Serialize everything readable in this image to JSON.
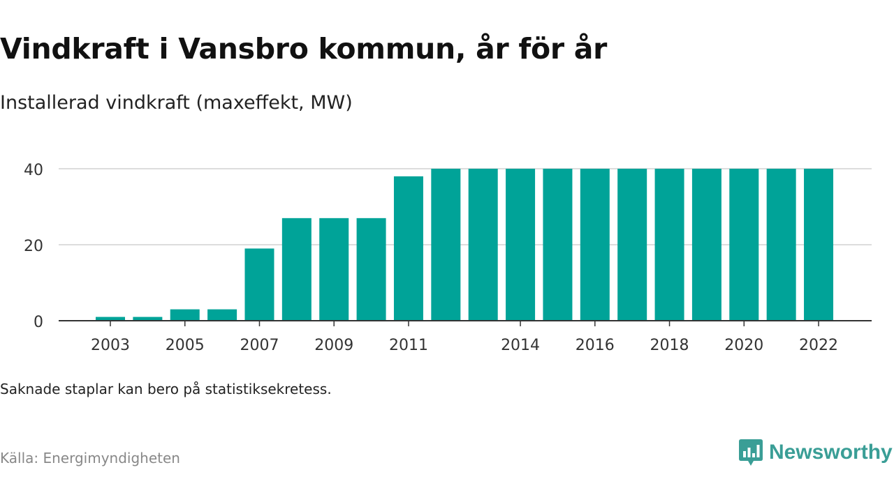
{
  "header": {
    "title": "Vindkraft i Vansbro kommun, år för år",
    "subtitle": "Installerad vindkraft (maxeffekt, MW)"
  },
  "footer": {
    "note": "Saknade staplar kan bero på statistiksekretess.",
    "source": "Källa: Energimyndigheten",
    "brand_name": "Newsworthy",
    "brand_icon": "newsworthy-logo-icon"
  },
  "colors": {
    "bar": "#00a398",
    "grid": "#dddddd",
    "axis": "#333333",
    "brand": "#3a9e96"
  },
  "chart_data": {
    "type": "bar",
    "title": "Vindkraft i Vansbro kommun, år för år",
    "subtitle": "Installerad vindkraft (maxeffekt, MW)",
    "categories": [
      "2003",
      "2004",
      "2005",
      "2006",
      "2007",
      "2008",
      "2009",
      "2010",
      "2011",
      "2012",
      "2013",
      "2014",
      "2015",
      "2016",
      "2017",
      "2018",
      "2019",
      "2020",
      "2021",
      "2022"
    ],
    "values": [
      1,
      1,
      3,
      3,
      19,
      27,
      27,
      27,
      38,
      40,
      40,
      40,
      40,
      40,
      40,
      40,
      40,
      40,
      40,
      40
    ],
    "xtick_labels": [
      "2003",
      "2005",
      "2007",
      "2009",
      "2011",
      "2014",
      "2016",
      "2018",
      "2020",
      "2022"
    ],
    "yticks": [
      0,
      20,
      40
    ],
    "ylim": [
      0,
      40
    ],
    "grid": true,
    "legend": "none"
  }
}
